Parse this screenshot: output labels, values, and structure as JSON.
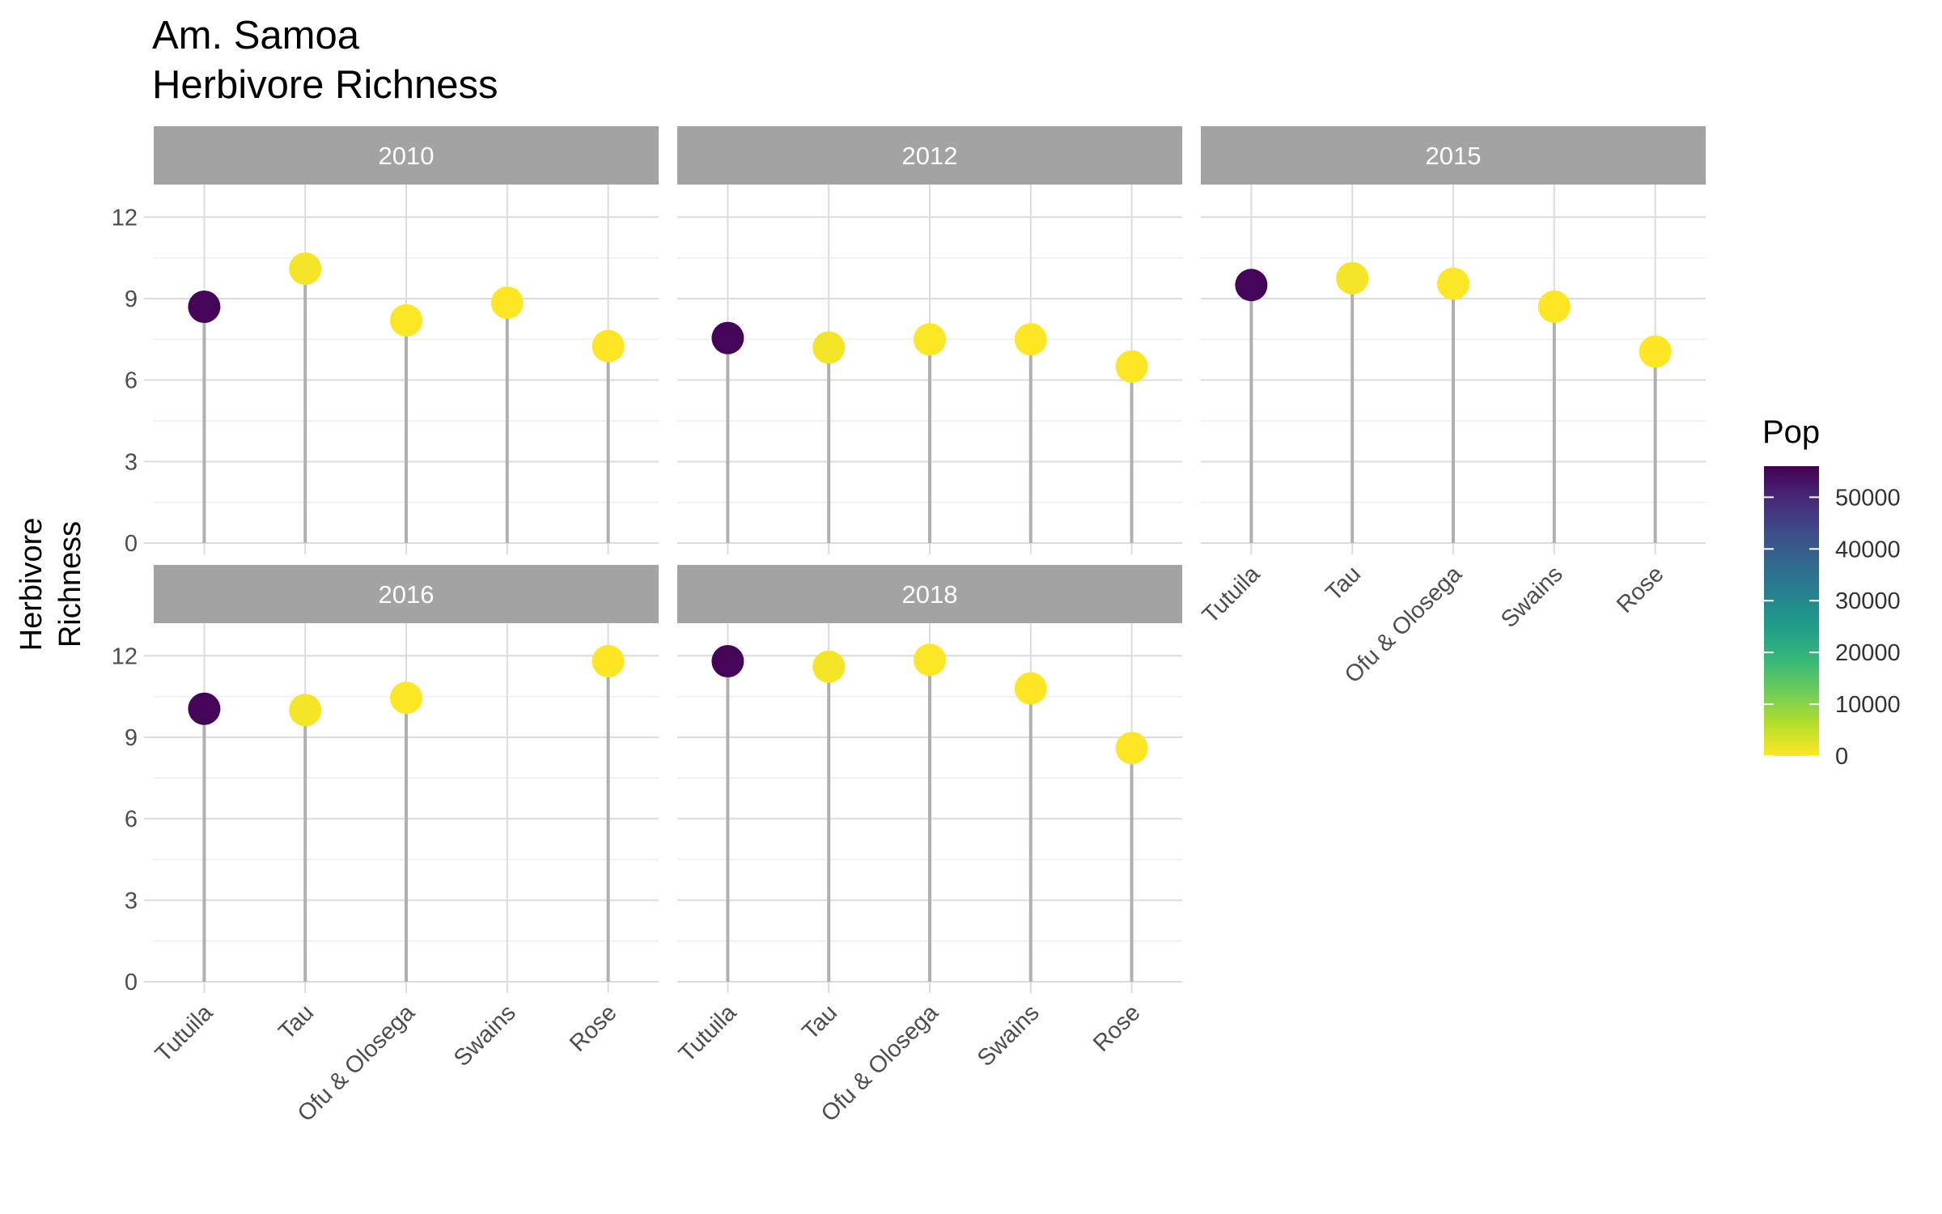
{
  "chart_data": {
    "type": "lollipop",
    "title_lines": [
      "Am. Samoa",
      "Herbivore Richness"
    ],
    "ylabel_lines": [
      "Herbivore",
      "Richness"
    ],
    "xlabel": "",
    "categories": [
      "Tutuila",
      "Tau",
      "Ofu & Olosega",
      "Swains",
      "Rose"
    ],
    "ylim": [
      0,
      13.2
    ],
    "yticks": [
      0,
      3,
      6,
      9,
      12
    ],
    "grid": true,
    "legend": {
      "title": "Pop",
      "position": "right",
      "type": "colorbar",
      "range": [
        0,
        56000
      ],
      "ticks": [
        0,
        10000,
        20000,
        30000,
        40000,
        50000
      ],
      "tick_labels": [
        "0",
        "10000",
        "20000",
        "30000",
        "40000",
        "50000"
      ],
      "colors": [
        "#FDE725",
        "#B4DE2C",
        "#6DCD59",
        "#35B779",
        "#1F9E89",
        "#26828E",
        "#31688E",
        "#3E4A89",
        "#482878",
        "#440154"
      ]
    },
    "panels": [
      {
        "label": "2010",
        "series": [
          {
            "x": "Tutuila",
            "y": 8.7,
            "pop": 55500
          },
          {
            "x": "Tau",
            "y": 10.1,
            "pop": 800
          },
          {
            "x": "Ofu & Olosega",
            "y": 8.2,
            "pop": 180
          },
          {
            "x": "Swains",
            "y": 8.85,
            "pop": 0
          },
          {
            "x": "Rose",
            "y": 7.25,
            "pop": 0
          }
        ]
      },
      {
        "label": "2012",
        "series": [
          {
            "x": "Tutuila",
            "y": 7.55,
            "pop": 55500
          },
          {
            "x": "Tau",
            "y": 7.2,
            "pop": 800
          },
          {
            "x": "Ofu & Olosega",
            "y": 7.5,
            "pop": 180
          },
          {
            "x": "Swains",
            "y": 7.5,
            "pop": 0
          },
          {
            "x": "Rose",
            "y": 6.5,
            "pop": 0
          }
        ]
      },
      {
        "label": "2015",
        "series": [
          {
            "x": "Tutuila",
            "y": 9.5,
            "pop": 55500
          },
          {
            "x": "Tau",
            "y": 9.75,
            "pop": 800
          },
          {
            "x": "Ofu & Olosega",
            "y": 9.55,
            "pop": 180
          },
          {
            "x": "Swains",
            "y": 8.7,
            "pop": 0
          },
          {
            "x": "Rose",
            "y": 7.05,
            "pop": 0
          }
        ]
      },
      {
        "label": "2016",
        "series": [
          {
            "x": "Tutuila",
            "y": 10.05,
            "pop": 55500
          },
          {
            "x": "Tau",
            "y": 10.0,
            "pop": 800
          },
          {
            "x": "Ofu & Olosega",
            "y": 10.45,
            "pop": 180
          },
          {
            "x": "Rose",
            "y": 11.8,
            "pop": 0
          }
        ]
      },
      {
        "label": "2018",
        "series": [
          {
            "x": "Tutuila",
            "y": 11.8,
            "pop": 55500
          },
          {
            "x": "Tau",
            "y": 11.6,
            "pop": 800
          },
          {
            "x": "Ofu & Olosega",
            "y": 11.85,
            "pop": 180
          },
          {
            "x": "Swains",
            "y": 10.8,
            "pop": 0
          },
          {
            "x": "Rose",
            "y": 8.6,
            "pop": 0
          }
        ]
      }
    ],
    "colors": {
      "strip_fill": "#A3A3A3",
      "strip_text": "#FFFFFF",
      "grid_major": "#DCDCDC",
      "grid_minor": "#EEEEEE",
      "stem": "#B0B0B0",
      "axis_text": "#4D4D4D"
    }
  }
}
